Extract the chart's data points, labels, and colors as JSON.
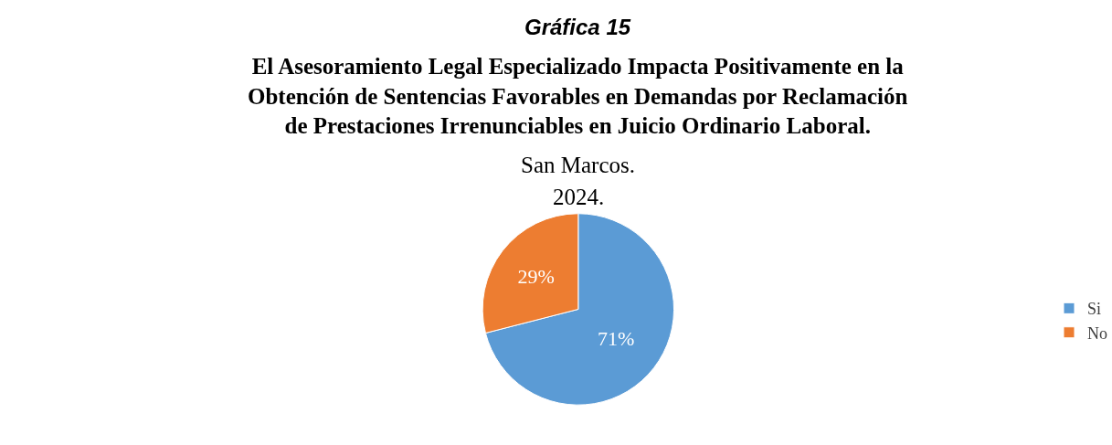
{
  "chart_data": {
    "type": "pie",
    "title": "Gráfica 15",
    "subtitle": "El Asesoramiento Legal Especializado Impacta Positivamente en la Obtención de Sentencias Favorables en Demandas por Reclamación de Prestaciones Irrenunciables en Juicio Ordinario Laboral.",
    "annotations": [
      "San Marcos.",
      "2024."
    ],
    "categories": [
      "Si",
      "No"
    ],
    "values": [
      71,
      29
    ],
    "value_labels": [
      "71%",
      "29%"
    ],
    "colors": [
      "#5b9bd5",
      "#ed7d31"
    ],
    "legend": "right"
  }
}
